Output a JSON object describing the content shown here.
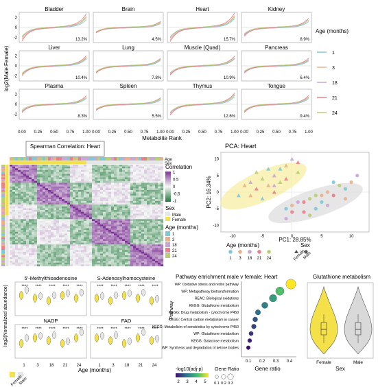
{
  "chart_data": [
    {
      "type": "line",
      "panel": "A",
      "ylabel": "log2(Male:Female)",
      "xlabel": "Metabolite Rank",
      "x_ticks": [
        "0.00",
        "0.25",
        "0.50",
        "0.75",
        "1.00"
      ],
      "y_ticks": [
        "2",
        "0",
        "-2"
      ],
      "legend_title": "Age (months)",
      "series_names": [
        "1",
        "3",
        "18",
        "21",
        "24"
      ],
      "series_colors": [
        "#7fc8d8",
        "#e9b08a",
        "#c9a6d6",
        "#e87f8a",
        "#b7cf74"
      ],
      "facets": [
        {
          "title": "Bladder",
          "pct": "13.2%",
          "amp": [
            1.6,
            2.2,
            1.9,
            2.6,
            1.8
          ]
        },
        {
          "title": "Brain",
          "pct": "4.5%",
          "amp": [
            0.8,
            0.9,
            1.0,
            1.1,
            0.9
          ]
        },
        {
          "title": "Heart",
          "pct": "15.7%",
          "amp": [
            1.8,
            2.3,
            2.0,
            2.7,
            1.9
          ]
        },
        {
          "title": "Kidney",
          "pct": "8.9%",
          "amp": [
            1.2,
            1.5,
            1.4,
            1.7,
            1.3
          ]
        },
        {
          "title": "Liver",
          "pct": "10.4%",
          "amp": [
            1.4,
            1.7,
            1.5,
            1.9,
            1.5
          ]
        },
        {
          "title": "Lung",
          "pct": "7.8%",
          "amp": [
            1.1,
            1.3,
            1.2,
            1.4,
            1.2
          ]
        },
        {
          "title": "Muscle (Quad)",
          "pct": "10.9%",
          "amp": [
            1.4,
            1.6,
            1.5,
            1.8,
            1.4
          ]
        },
        {
          "title": "Pancreas",
          "pct": "6.4%",
          "amp": [
            1.0,
            1.2,
            1.1,
            1.4,
            1.1
          ]
        },
        {
          "title": "Plasma",
          "pct": "8.3%",
          "amp": [
            1.2,
            1.4,
            1.3,
            1.6,
            1.2
          ]
        },
        {
          "title": "Spleen",
          "pct": "5.5%",
          "amp": [
            0.9,
            1.1,
            1.0,
            1.2,
            1.0
          ]
        },
        {
          "title": "Thymus",
          "pct": "12.6%",
          "amp": [
            1.5,
            1.9,
            1.7,
            2.1,
            1.6
          ]
        },
        {
          "title": "Tongue",
          "pct": "9.4%",
          "amp": [
            1.2,
            1.4,
            1.3,
            1.6,
            1.3
          ]
        }
      ]
    },
    {
      "type": "heatmap",
      "panel": "B",
      "title": "Spearman Correlation: Heart",
      "col_annotations": [
        "Age",
        "Sex"
      ],
      "legend_correlation_title": "Correlation",
      "legend_correlation_ticks": [
        "1",
        "0.5",
        "0",
        "-0.5",
        "-1"
      ],
      "legend_sex_title": "Sex",
      "legend_sex_items": [
        "Male",
        "Female"
      ],
      "legend_age_title": "Age (months)",
      "legend_age_items": [
        "1",
        "3",
        "18",
        "21",
        "24"
      ]
    },
    {
      "type": "scatter",
      "panel": "C",
      "title": "PCA: Heart",
      "xlabel": "PC1: 28.85%",
      "ylabel": "PC2: 16.34%",
      "x_ticks": [
        "-10",
        "-5",
        "0",
        "5",
        "10"
      ],
      "y_ticks": [
        "10",
        "5",
        "0",
        "-5",
        "-10"
      ],
      "xlim": [
        -12,
        13
      ],
      "ylim": [
        -12,
        12
      ],
      "female_points": [
        [
          -9,
          -1
        ],
        [
          -8,
          2
        ],
        [
          -7,
          3
        ],
        [
          -6,
          1
        ],
        [
          -5,
          4
        ],
        [
          -5,
          -2
        ],
        [
          -4,
          2
        ],
        [
          -3,
          5
        ],
        [
          -3,
          0
        ],
        [
          -2,
          3
        ],
        [
          -2,
          7
        ],
        [
          -1,
          8
        ],
        [
          0,
          10
        ],
        [
          1,
          9
        ],
        [
          -6,
          6
        ],
        [
          -4,
          7
        ],
        [
          -7,
          -1
        ],
        [
          -3,
          2
        ],
        [
          -1,
          4
        ],
        [
          1,
          6
        ]
      ],
      "male_points": [
        [
          -1,
          -5
        ],
        [
          0,
          -4
        ],
        [
          1,
          -3
        ],
        [
          2,
          -6
        ],
        [
          3,
          -2
        ],
        [
          4,
          -5
        ],
        [
          5,
          -1
        ],
        [
          6,
          -4
        ],
        [
          7,
          -1
        ],
        [
          8,
          2
        ],
        [
          9,
          1
        ],
        [
          10,
          3
        ],
        [
          11,
          5
        ],
        [
          2,
          -3
        ],
        [
          3,
          -7
        ],
        [
          5,
          -3
        ],
        [
          6,
          0
        ],
        [
          -1,
          -8
        ],
        [
          0,
          -6
        ],
        [
          4,
          -1
        ],
        [
          7,
          3
        ],
        [
          9,
          -2
        ]
      ],
      "legend_age_title": "Age (months)",
      "legend_age_items": [
        "1",
        "3",
        "18",
        "21",
        "24"
      ],
      "legend_sex_title": "Sex",
      "legend_sex_items": [
        "Female",
        "Male"
      ]
    },
    {
      "type": "violin",
      "panel": "D",
      "ylabel": "log2(Normalized abundance)",
      "xlabel": "Age (months)",
      "x_ticks": [
        "1",
        "3",
        "18",
        "21",
        "24"
      ],
      "sig_mark": "****",
      "legend_sex_items": [
        "Female",
        "Male"
      ],
      "facets": [
        "5'-Methylthioadenosine",
        "S-Adenosylhomocysteine",
        "NADP",
        "FAD"
      ]
    },
    {
      "type": "scatter",
      "panel": "E",
      "title": "Pathway enrichment male v female: Heart",
      "ylabel": "Pathway",
      "xlabel": "Gene ratio",
      "x_ticks": [
        "0.1",
        "0.2",
        "0.3",
        "0.4"
      ],
      "xlim": [
        0.05,
        0.45
      ],
      "pathways": [
        {
          "name": "WP: Oxidative stress and redox pathway",
          "ratio": 0.41,
          "logp": 5.0
        },
        {
          "name": "WP: Metapathway biotransformation",
          "ratio": 0.33,
          "logp": 4.0
        },
        {
          "name": "REAC: Biological oxidations",
          "ratio": 0.28,
          "logp": 3.4
        },
        {
          "name": "KEGG: Glutathione metabolism",
          "ratio": 0.22,
          "logp": 3.0
        },
        {
          "name": "KEGG: Drug metabolism - cytochrome P450",
          "ratio": 0.17,
          "logp": 2.8
        },
        {
          "name": "KEGG: Central carbon metabolism in cancer",
          "ratio": 0.15,
          "logp": 2.5
        },
        {
          "name": "KEGG: Metabolism of xenobiotics by cytochrome P450",
          "ratio": 0.14,
          "logp": 2.3
        },
        {
          "name": "WP: Glutathione metabolism",
          "ratio": 0.12,
          "logp": 2.1
        },
        {
          "name": "KEGG: Galactose metabolism",
          "ratio": 0.11,
          "logp": 1.9
        },
        {
          "name": "WP: Synthesis and degradation of ketone bodies",
          "ratio": 0.1,
          "logp": 1.7
        }
      ],
      "color_legend_title": "-log10(adj-p)",
      "color_ticks": [
        "2",
        "3",
        "4",
        "5"
      ],
      "size_legend_title": "Gene Ratio",
      "size_ticks": [
        "0.1",
        "0.2",
        "0.3"
      ]
    },
    {
      "type": "violin",
      "panel": "F",
      "title": "Glutathione metabolism",
      "xlabel": "Sex",
      "categories": [
        "Female",
        "Male"
      ],
      "colors": {
        "female": "#f4e14a",
        "male": "#d9d9d9"
      }
    }
  ]
}
